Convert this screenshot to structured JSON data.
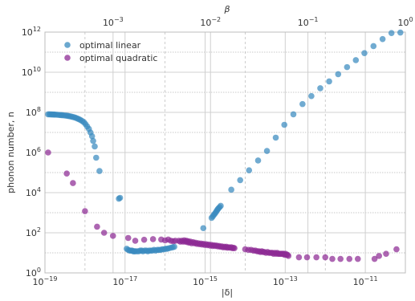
{
  "chart_data": {
    "type": "scatter",
    "xlabel": "|δ|",
    "ylabel": "phonon number, n",
    "top_xlabel": "β",
    "xscale": "log",
    "yscale": "log",
    "xlim": [
      1e-19,
      1e-10
    ],
    "ylim": [
      1,
      1000000000000.0
    ],
    "top_xlim": [
      0.0002,
      1
    ],
    "grid": true,
    "legend_placement": "upper-left",
    "x_ticks": [
      {
        "value": 1e-19,
        "base": "10",
        "exp": "−19"
      },
      {
        "value": 1e-17,
        "base": "10",
        "exp": "−17"
      },
      {
        "value": 1e-15,
        "base": "10",
        "exp": "−15"
      },
      {
        "value": 1e-13,
        "base": "10",
        "exp": "−13"
      },
      {
        "value": 1e-11,
        "base": "10",
        "exp": "−11"
      }
    ],
    "y_ticks": [
      {
        "value": 1,
        "base": "10",
        "exp": "0"
      },
      {
        "value": 100,
        "base": "10",
        "exp": "2"
      },
      {
        "value": 10000,
        "base": "10",
        "exp": "4"
      },
      {
        "value": 1000000,
        "base": "10",
        "exp": "6"
      },
      {
        "value": 100000000,
        "base": "10",
        "exp": "8"
      },
      {
        "value": 10000000000,
        "base": "10",
        "exp": "10"
      },
      {
        "value": 1000000000000,
        "base": "10",
        "exp": "12"
      }
    ],
    "top_ticks": [
      {
        "value": 0.001,
        "base": "10",
        "exp": "−3"
      },
      {
        "value": 0.01,
        "base": "10",
        "exp": "−2"
      },
      {
        "value": 0.1,
        "base": "10",
        "exp": "−1"
      },
      {
        "value": 1,
        "base": "10",
        "exp": "0"
      }
    ],
    "series": [
      {
        "name": "optimal linear",
        "color": "#3a8bbf",
        "points": [
          [
            1.2e-19,
            80000000.0
          ],
          [
            1.3e-19,
            80000000.0
          ],
          [
            1.4e-19,
            79000000.0
          ],
          [
            1.5e-19,
            79000000.0
          ],
          [
            1.6e-19,
            78000000.0
          ],
          [
            1.7e-19,
            78000000.0
          ],
          [
            1.8e-19,
            77000000.0
          ],
          [
            2e-19,
            76000000.0
          ],
          [
            2.2e-19,
            75000000.0
          ],
          [
            2.4e-19,
            74000000.0
          ],
          [
            2.6e-19,
            73000000.0
          ],
          [
            2.8e-19,
            72000000.0
          ],
          [
            3.1e-19,
            70000000.0
          ],
          [
            3.4e-19,
            69000000.0
          ],
          [
            3.7e-19,
            67000000.0
          ],
          [
            4e-19,
            65000000.0
          ],
          [
            4.4e-19,
            63000000.0
          ],
          [
            4.8e-19,
            60000000.0
          ],
          [
            5.3e-19,
            57000000.0
          ],
          [
            5.8e-19,
            54000000.0
          ],
          [
            6.4e-19,
            50000000.0
          ],
          [
            7e-19,
            46000000.0
          ],
          [
            7.7e-19,
            42000000.0
          ],
          [
            8.5e-19,
            37000000.0
          ],
          [
            9.4e-19,
            32000000.0
          ],
          [
            1.03e-18,
            26000000.0
          ],
          [
            1.13e-18,
            20000000.0
          ],
          [
            1.25e-18,
            15000000.0
          ],
          [
            1.37e-18,
            10000000.0
          ],
          [
            1.5e-18,
            6500000.0
          ],
          [
            1.6e-18,
            3800000.0
          ],
          [
            1.75e-18,
            2000000.0
          ],
          [
            1.9e-18,
            550000.0
          ],
          [
            2.3e-18,
            120000.0
          ],
          [
            7e-18,
            5000.0
          ],
          [
            7.5e-18,
            5500.0
          ],
          [
            1.1e-17,
            16
          ],
          [
            1.2e-17,
            14
          ],
          [
            1.3e-17,
            13
          ],
          [
            1.4e-17,
            13
          ],
          [
            1.5e-17,
            13
          ],
          [
            1.6e-17,
            12
          ],
          [
            1.7e-17,
            12
          ],
          [
            1.8e-17,
            12
          ],
          [
            2e-17,
            12
          ],
          [
            2.2e-17,
            12
          ],
          [
            2.4e-17,
            13
          ],
          [
            2.6e-17,
            13
          ],
          [
            2.8e-17,
            12
          ],
          [
            3.1e-17,
            13
          ],
          [
            3.4e-17,
            13
          ],
          [
            3.7e-17,
            12
          ],
          [
            4e-17,
            13
          ],
          [
            4.4e-17,
            13
          ],
          [
            4.8e-17,
            13
          ],
          [
            5.3e-17,
            14
          ],
          [
            5.8e-17,
            13
          ],
          [
            6.4e-17,
            14
          ],
          [
            7e-17,
            14
          ],
          [
            7.7e-17,
            14
          ],
          [
            8.5e-17,
            15
          ],
          [
            9.4e-17,
            15
          ],
          [
            1.03e-16,
            16
          ],
          [
            1.13e-16,
            16
          ],
          [
            1.25e-16,
            17
          ],
          [
            1.4e-16,
            18
          ],
          [
            1.55e-16,
            19
          ],
          [
            1.7e-16,
            20
          ],
          [
            9e-16,
            170
          ],
          [
            1.45e-15,
            550
          ],
          [
            1.55e-15,
            650
          ],
          [
            1.65e-15,
            780
          ],
          [
            1.75e-15,
            900
          ],
          [
            1.85e-15,
            1050
          ],
          [
            1.95e-15,
            1250
          ],
          [
            2.05e-15,
            1450
          ],
          [
            2.15e-15,
            1650
          ],
          [
            2.3e-15,
            1900
          ],
          [
            2.45e-15,
            2200
          ],
          [
            4.5e-15,
            14000.0
          ],
          [
            7.5e-15,
            42000.0
          ],
          [
            1.25e-14,
            130000.0
          ],
          [
            2.1e-14,
            400000.0
          ],
          [
            3.5e-14,
            1200000.0
          ],
          [
            5.8e-14,
            5500000.0
          ],
          [
            9.5e-14,
            24000000.0
          ],
          [
            1.6e-13,
            80000000.0
          ],
          [
            2.7e-13,
            260000000.0
          ],
          [
            4.5e-13,
            650000000.0
          ],
          [
            7.5e-13,
            1600000000.0
          ],
          [
            1.25e-12,
            3500000000.0
          ],
          [
            2.1e-12,
            8000000000.0
          ],
          [
            3.5e-12,
            18000000000.0
          ],
          [
            5.8e-12,
            40000000000.0
          ],
          [
            9.5e-12,
            90000000000.0
          ],
          [
            1.6e-11,
            200000000000.0
          ],
          [
            2.7e-11,
            450000000000.0
          ],
          [
            4.5e-11,
            900000000000.0
          ],
          [
            7.5e-11,
            950000000000.0
          ]
        ]
      },
      {
        "name": "optimal quadratic",
        "color": "#8e2b94",
        "points": [
          [
            1.2e-19,
            1000000.0
          ],
          [
            3.5e-19,
            90000.0
          ],
          [
            5e-19,
            30000.0
          ],
          [
            1e-18,
            1200.0
          ],
          [
            2e-18,
            200
          ],
          [
            3e-18,
            100
          ],
          [
            5e-18,
            70
          ],
          [
            1.2e-17,
            55
          ],
          [
            1.8e-17,
            40
          ],
          [
            3e-17,
            45
          ],
          [
            5e-17,
            48
          ],
          [
            8e-17,
            46
          ],
          [
            1e-16,
            42
          ],
          [
            1.2e-16,
            46
          ],
          [
            1.4e-16,
            40
          ],
          [
            1.6e-16,
            38
          ],
          [
            1.8e-16,
            40
          ],
          [
            2.2e-16,
            40
          ],
          [
            2.4e-16,
            36
          ],
          [
            2.6e-16,
            40
          ],
          [
            2.8e-16,
            36
          ],
          [
            3e-16,
            42
          ],
          [
            3.2e-16,
            36
          ],
          [
            3.4e-16,
            40
          ],
          [
            3.6e-16,
            34
          ],
          [
            3.8e-16,
            38
          ],
          [
            4e-16,
            32
          ],
          [
            4.3e-16,
            36
          ],
          [
            4.6e-16,
            30
          ],
          [
            5e-16,
            34
          ],
          [
            5.4e-16,
            30
          ],
          [
            5.8e-16,
            32
          ],
          [
            6.2e-16,
            28
          ],
          [
            6.7e-16,
            30
          ],
          [
            7.2e-16,
            27
          ],
          [
            7.8e-16,
            29
          ],
          [
            8.4e-16,
            26
          ],
          [
            9e-16,
            28
          ],
          [
            9.7e-16,
            25
          ],
          [
            1.05e-15,
            27
          ],
          [
            1.13e-15,
            24
          ],
          [
            1.22e-15,
            26
          ],
          [
            1.32e-15,
            23
          ],
          [
            1.42e-15,
            25
          ],
          [
            1.53e-15,
            22
          ],
          [
            1.65e-15,
            24
          ],
          [
            1.78e-15,
            22
          ],
          [
            1.92e-15,
            23
          ],
          [
            2.07e-15,
            21
          ],
          [
            2.23e-15,
            22
          ],
          [
            2.4e-15,
            20
          ],
          [
            2.6e-15,
            21
          ],
          [
            2.8e-15,
            19
          ],
          [
            3e-15,
            20
          ],
          [
            3.2e-15,
            19
          ],
          [
            3.4e-15,
            20
          ],
          [
            3.6e-15,
            18
          ],
          [
            3.9e-15,
            19
          ],
          [
            4.2e-15,
            18
          ],
          [
            4.5e-15,
            19
          ],
          [
            4.8e-15,
            17
          ],
          [
            5.1e-15,
            18
          ],
          [
            5.4e-15,
            17
          ],
          [
            1e-14,
            15
          ],
          [
            1.2e-14,
            14
          ],
          [
            1.4e-14,
            14
          ],
          [
            1.6e-14,
            13
          ],
          [
            1.8e-14,
            13
          ],
          [
            2e-14,
            12
          ],
          [
            2.2e-14,
            12
          ],
          [
            2.4e-14,
            11
          ],
          [
            2.6e-14,
            12
          ],
          [
            2.8e-14,
            11
          ],
          [
            3e-14,
            11
          ],
          [
            3.3e-14,
            10
          ],
          [
            3.6e-14,
            11
          ],
          [
            3.9e-14,
            10
          ],
          [
            4.2e-14,
            10
          ],
          [
            4.5e-14,
            10
          ],
          [
            4.8e-14,
            10
          ],
          [
            5.1e-14,
            9
          ],
          [
            5.5e-14,
            10
          ],
          [
            5.9e-14,
            9
          ],
          [
            6.3e-14,
            10
          ],
          [
            6.7e-14,
            9
          ],
          [
            7.1e-14,
            9
          ],
          [
            7.6e-14,
            9
          ],
          [
            8.1e-14,
            9
          ],
          [
            8.6e-14,
            9
          ],
          [
            9.1e-14,
            9
          ],
          [
            9.6e-14,
            8
          ],
          [
            1.02e-13,
            9
          ],
          [
            1.08e-13,
            8
          ],
          [
            1.14e-13,
            8
          ],
          [
            1.2e-13,
            7
          ],
          [
            2.2e-13,
            6
          ],
          [
            3.5e-13,
            6
          ],
          [
            6e-13,
            6
          ],
          [
            1e-12,
            6
          ],
          [
            1.5e-12,
            5
          ],
          [
            2.4e-12,
            5
          ],
          [
            4e-12,
            5
          ],
          [
            6.5e-12,
            5
          ],
          [
            1.7e-11,
            5
          ],
          [
            2.2e-11,
            7
          ],
          [
            3.3e-11,
            9
          ],
          [
            6e-11,
            15
          ]
        ]
      }
    ]
  }
}
